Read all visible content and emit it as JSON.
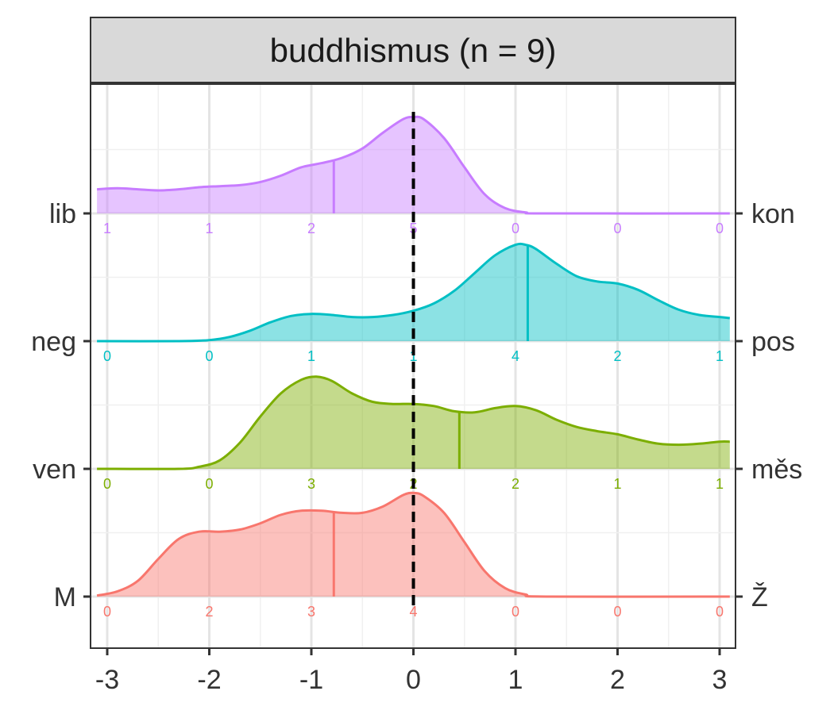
{
  "chart_data": {
    "type": "ridgeline-density",
    "facet_title": "buddhismus (n = 9)",
    "x_ticks": [
      -3,
      -2,
      -1,
      0,
      1,
      2,
      3
    ],
    "x_tick_labels": [
      "-3",
      "-2",
      "-1",
      "0",
      "1",
      "2",
      "3"
    ],
    "xlim": [
      -3.1,
      3.1
    ],
    "reference_line_x": 0,
    "grid": true,
    "rows": [
      {
        "left_label": "M",
        "right_label": "Ž",
        "color": "#F8766D",
        "counts": [
          "0",
          "2",
          "3",
          "4",
          "0",
          "0",
          "0"
        ],
        "mean": -0.78,
        "density": [
          [
            -3.1,
            0.01
          ],
          [
            -2.9,
            0.05
          ],
          [
            -2.7,
            0.15
          ],
          [
            -2.5,
            0.36
          ],
          [
            -2.3,
            0.55
          ],
          [
            -2.1,
            0.62
          ],
          [
            -1.9,
            0.62
          ],
          [
            -1.7,
            0.64
          ],
          [
            -1.5,
            0.7
          ],
          [
            -1.3,
            0.78
          ],
          [
            -1.1,
            0.82
          ],
          [
            -0.9,
            0.82
          ],
          [
            -0.7,
            0.8
          ],
          [
            -0.5,
            0.8
          ],
          [
            -0.3,
            0.86
          ],
          [
            -0.1,
            0.97
          ],
          [
            0.0,
            0.99
          ],
          [
            0.1,
            0.96
          ],
          [
            0.3,
            0.8
          ],
          [
            0.5,
            0.52
          ],
          [
            0.7,
            0.24
          ],
          [
            0.9,
            0.08
          ],
          [
            1.1,
            0.02
          ],
          [
            1.3,
            0.0
          ],
          [
            3.1,
            0.0
          ]
        ]
      },
      {
        "left_label": "ven",
        "right_label": "měs",
        "color": "#7CAE00",
        "counts": [
          "0",
          "0",
          "3",
          "2",
          "2",
          "1",
          "1"
        ],
        "mean": 0.45,
        "density": [
          [
            -3.1,
            0.0
          ],
          [
            -2.3,
            0.0
          ],
          [
            -2.1,
            0.02
          ],
          [
            -1.9,
            0.08
          ],
          [
            -1.7,
            0.25
          ],
          [
            -1.5,
            0.5
          ],
          [
            -1.3,
            0.72
          ],
          [
            -1.1,
            0.85
          ],
          [
            -0.95,
            0.88
          ],
          [
            -0.8,
            0.84
          ],
          [
            -0.6,
            0.72
          ],
          [
            -0.4,
            0.64
          ],
          [
            -0.2,
            0.62
          ],
          [
            0.0,
            0.62
          ],
          [
            0.2,
            0.6
          ],
          [
            0.4,
            0.55
          ],
          [
            0.6,
            0.54
          ],
          [
            0.8,
            0.58
          ],
          [
            1.0,
            0.6
          ],
          [
            1.2,
            0.56
          ],
          [
            1.4,
            0.47
          ],
          [
            1.6,
            0.4
          ],
          [
            1.8,
            0.36
          ],
          [
            2.0,
            0.33
          ],
          [
            2.2,
            0.28
          ],
          [
            2.4,
            0.24
          ],
          [
            2.6,
            0.23
          ],
          [
            2.8,
            0.24
          ],
          [
            3.0,
            0.26
          ],
          [
            3.1,
            0.26
          ]
        ]
      },
      {
        "left_label": "neg",
        "right_label": "pos",
        "color": "#00BFC4",
        "counts": [
          "0",
          "0",
          "1",
          "1",
          "4",
          "2",
          "1"
        ],
        "mean": 1.12,
        "density": [
          [
            -3.1,
            0.0
          ],
          [
            -2.3,
            0.0
          ],
          [
            -2.0,
            0.01
          ],
          [
            -1.8,
            0.04
          ],
          [
            -1.6,
            0.1
          ],
          [
            -1.4,
            0.18
          ],
          [
            -1.2,
            0.24
          ],
          [
            -1.0,
            0.26
          ],
          [
            -0.8,
            0.25
          ],
          [
            -0.6,
            0.23
          ],
          [
            -0.4,
            0.23
          ],
          [
            -0.2,
            0.25
          ],
          [
            0.0,
            0.29
          ],
          [
            0.2,
            0.36
          ],
          [
            0.4,
            0.48
          ],
          [
            0.6,
            0.65
          ],
          [
            0.8,
            0.82
          ],
          [
            1.0,
            0.92
          ],
          [
            1.1,
            0.92
          ],
          [
            1.2,
            0.88
          ],
          [
            1.4,
            0.74
          ],
          [
            1.6,
            0.62
          ],
          [
            1.8,
            0.57
          ],
          [
            2.0,
            0.55
          ],
          [
            2.2,
            0.49
          ],
          [
            2.4,
            0.39
          ],
          [
            2.6,
            0.3
          ],
          [
            2.8,
            0.25
          ],
          [
            3.0,
            0.23
          ],
          [
            3.1,
            0.22
          ]
        ]
      },
      {
        "left_label": "lib",
        "right_label": "kon",
        "color": "#C77CFF",
        "counts": [
          "1",
          "1",
          "2",
          "5",
          "0",
          "0",
          "0"
        ],
        "mean": -0.78,
        "density": [
          [
            -3.1,
            0.23
          ],
          [
            -2.9,
            0.24
          ],
          [
            -2.7,
            0.23
          ],
          [
            -2.5,
            0.22
          ],
          [
            -2.3,
            0.23
          ],
          [
            -2.1,
            0.25
          ],
          [
            -1.9,
            0.26
          ],
          [
            -1.7,
            0.27
          ],
          [
            -1.5,
            0.3
          ],
          [
            -1.3,
            0.36
          ],
          [
            -1.1,
            0.44
          ],
          [
            -0.9,
            0.48
          ],
          [
            -0.7,
            0.53
          ],
          [
            -0.5,
            0.62
          ],
          [
            -0.3,
            0.77
          ],
          [
            -0.1,
            0.9
          ],
          [
            0.0,
            0.92
          ],
          [
            0.1,
            0.9
          ],
          [
            0.3,
            0.72
          ],
          [
            0.5,
            0.44
          ],
          [
            0.7,
            0.18
          ],
          [
            0.9,
            0.05
          ],
          [
            1.1,
            0.01
          ],
          [
            1.3,
            0.0
          ],
          [
            3.1,
            0.0
          ]
        ]
      }
    ]
  }
}
